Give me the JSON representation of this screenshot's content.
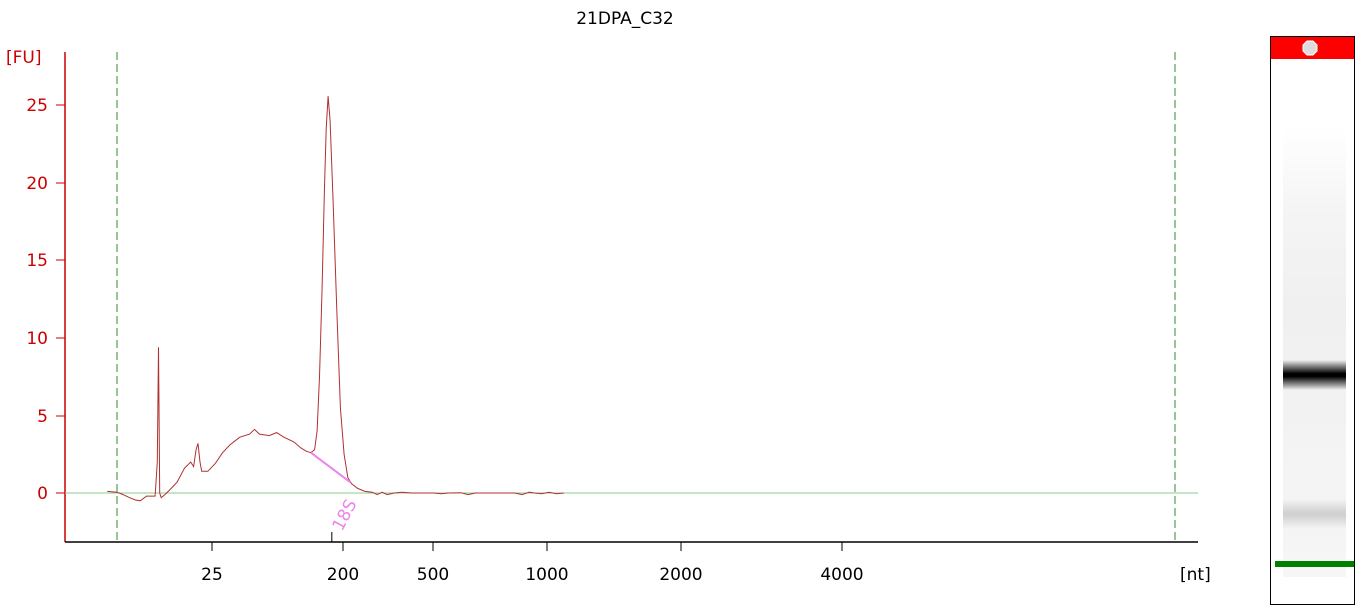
{
  "chart_data": {
    "type": "line",
    "title": "21DPA_C32",
    "ylabel": "[FU]",
    "xlabel": "[nt]",
    "y_ticks": [
      "0",
      "5",
      "10",
      "15",
      "20",
      "25"
    ],
    "ylim": [
      -3,
      28
    ],
    "x_ticks": [
      "25",
      "200",
      "500",
      "1000",
      "2000",
      "4000"
    ],
    "grid": false,
    "series": [
      {
        "color": "#b03030",
        "points": [
          [
            -0.4,
            0.1
          ],
          [
            0,
            0.05
          ],
          [
            0.25,
            -0.1
          ],
          [
            0.5,
            -0.3
          ],
          [
            0.75,
            -0.45
          ],
          [
            0.95,
            -0.5
          ],
          [
            1.2,
            -0.2
          ],
          [
            1.55,
            -0.2
          ],
          [
            1.64,
            2
          ],
          [
            1.69,
            9.4
          ],
          [
            1.74,
            0
          ],
          [
            1.8,
            -0.3
          ],
          [
            1.95,
            -0.1
          ],
          [
            2.15,
            0.2
          ],
          [
            2.45,
            0.7
          ],
          [
            2.75,
            1.6
          ],
          [
            3.0,
            2.0
          ],
          [
            3.12,
            1.7
          ],
          [
            3.22,
            2.8
          ],
          [
            3.3,
            3.2
          ],
          [
            3.38,
            2.0
          ],
          [
            3.45,
            1.4
          ],
          [
            3.7,
            1.4
          ],
          [
            4.0,
            1.9
          ],
          [
            4.3,
            2.6
          ],
          [
            4.6,
            3.1
          ],
          [
            5.0,
            3.6
          ],
          [
            5.4,
            3.8
          ],
          [
            5.6,
            4.1
          ],
          [
            5.8,
            3.8
          ],
          [
            6.2,
            3.7
          ],
          [
            6.5,
            3.9
          ],
          [
            6.8,
            3.6
          ],
          [
            7.2,
            3.3
          ],
          [
            7.5,
            2.9
          ],
          [
            7.7,
            2.7
          ],
          [
            7.9,
            2.6
          ],
          [
            8.05,
            2.8
          ],
          [
            8.15,
            4.0
          ],
          [
            8.25,
            7.5
          ],
          [
            8.35,
            13
          ],
          [
            8.45,
            19.5
          ],
          [
            8.52,
            23.5
          ],
          [
            8.6,
            25.6
          ],
          [
            8.68,
            24
          ],
          [
            8.8,
            19
          ],
          [
            8.95,
            12
          ],
          [
            9.1,
            5.5
          ],
          [
            9.25,
            2.5
          ],
          [
            9.4,
            1.0
          ],
          [
            9.55,
            0.6
          ],
          [
            9.8,
            0.3
          ],
          [
            10.1,
            0.1
          ],
          [
            10.4,
            0.05
          ],
          [
            10.6,
            -0.1
          ],
          [
            10.8,
            0.05
          ],
          [
            11.0,
            -0.1
          ],
          [
            11.3,
            0.0
          ],
          [
            11.6,
            0.05
          ],
          [
            12.0,
            0.0
          ],
          [
            12.9,
            0.0
          ],
          [
            13.2,
            -0.05
          ],
          [
            13.5,
            0.0
          ],
          [
            14.0,
            0.02
          ],
          [
            14.3,
            -0.1
          ],
          [
            14.6,
            0.0
          ],
          [
            15.0,
            0.0
          ],
          [
            15.5,
            0.0
          ],
          [
            16.2,
            0.0
          ],
          [
            16.5,
            -0.1
          ],
          [
            16.8,
            0.05
          ],
          [
            17.0,
            0.0
          ],
          [
            17.3,
            -0.05
          ],
          [
            17.6,
            0.05
          ],
          [
            17.9,
            -0.05
          ],
          [
            18.2,
            0.0
          ]
        ]
      }
    ],
    "annotations": [
      {
        "label": "18S",
        "color": "#ee82ee",
        "baseline_from": [
          7.9,
          2.6
        ],
        "baseline_to": [
          9.5,
          0.7
        ],
        "marker_x": 8.75
      }
    ]
  },
  "gel_lane": {
    "top_color": "#ff0000",
    "bands": [
      {
        "position": 0.55,
        "color": "#000000",
        "strength": 1.0
      },
      {
        "position": 0.86,
        "color": "#808080",
        "strength": 0.3
      },
      {
        "position": 0.97,
        "color": "#008000",
        "strength": 1.0
      }
    ]
  }
}
